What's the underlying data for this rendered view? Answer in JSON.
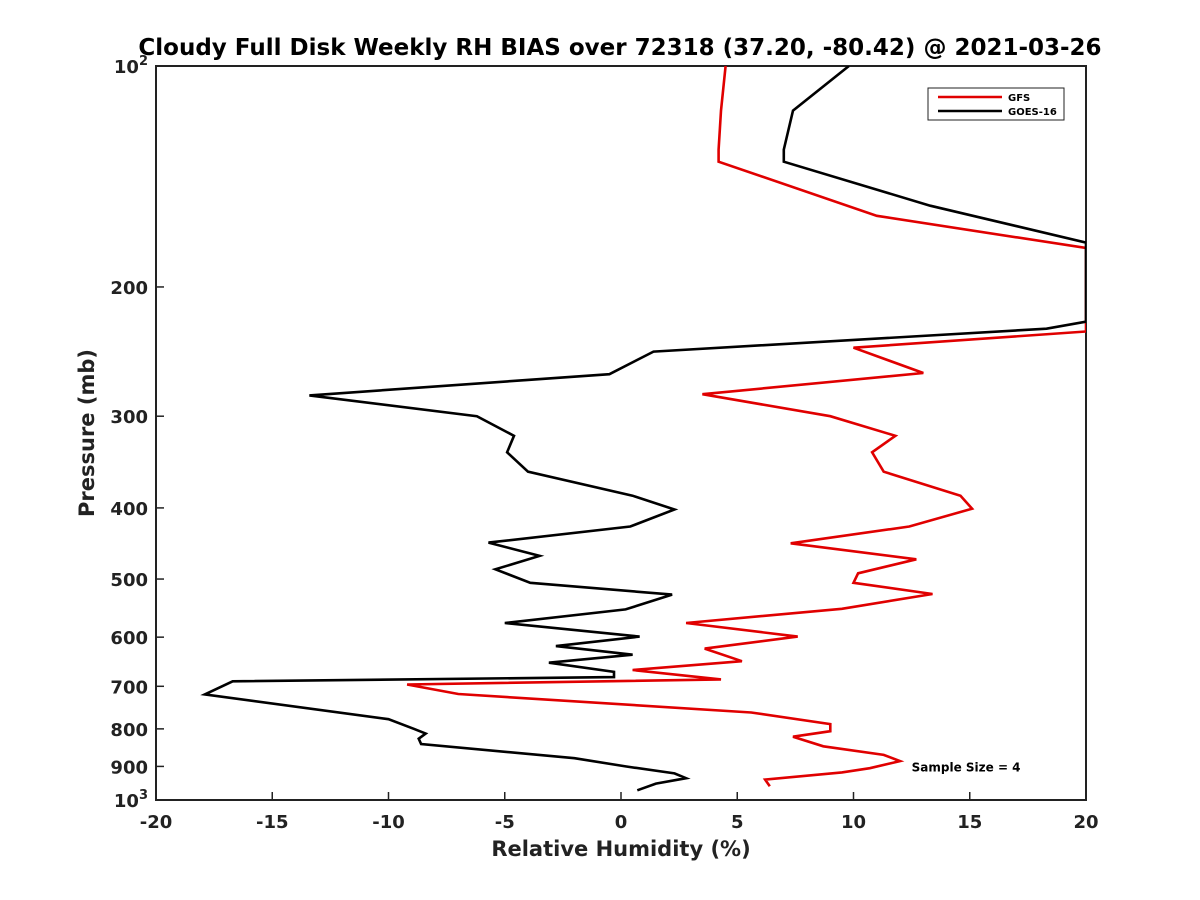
{
  "chart_data": {
    "type": "line",
    "orientation": "profile",
    "title": "Cloudy Full Disk Weekly RH BIAS over 72318 (37.20, -80.42) @ 2021-03-26",
    "xlabel": "Relative Humidity (%)",
    "ylabel": "Pressure (mb)",
    "xlim": [
      -20,
      20
    ],
    "ylim": [
      100,
      1000
    ],
    "yscale": "log",
    "y_inverted": true,
    "grid": false,
    "xticks": [
      {
        "value": -20,
        "label": "-20"
      },
      {
        "value": -15,
        "label": "-15"
      },
      {
        "value": -10,
        "label": "-10"
      },
      {
        "value": -5,
        "label": "-5"
      },
      {
        "value": 0,
        "label": "0"
      },
      {
        "value": 5,
        "label": "5"
      },
      {
        "value": 10,
        "label": "10"
      },
      {
        "value": 15,
        "label": "15"
      },
      {
        "value": 20,
        "label": "20"
      }
    ],
    "yticks": [
      {
        "value": 100,
        "base": "10",
        "exp": "2"
      },
      {
        "value": 200,
        "base": "200",
        "exp": ""
      },
      {
        "value": 300,
        "base": "300",
        "exp": ""
      },
      {
        "value": 400,
        "base": "400",
        "exp": ""
      },
      {
        "value": 500,
        "base": "500",
        "exp": ""
      },
      {
        "value": 600,
        "base": "600",
        "exp": ""
      },
      {
        "value": 700,
        "base": "700",
        "exp": ""
      },
      {
        "value": 800,
        "base": "800",
        "exp": ""
      },
      {
        "value": 900,
        "base": "900",
        "exp": ""
      },
      {
        "value": 1000,
        "base": "10",
        "exp": "3"
      }
    ],
    "legend_position": "top-right",
    "series": [
      {
        "name": "GFS",
        "color": "#e00000",
        "points": [
          [
            4.5,
            100
          ],
          [
            4.3,
            115
          ],
          [
            4.2,
            130
          ],
          [
            4.2,
            135
          ],
          [
            11,
            160
          ],
          [
            20,
            177
          ],
          [
            20,
            230
          ],
          [
            10,
            242
          ],
          [
            13,
            262
          ],
          [
            3.5,
            280
          ],
          [
            9,
            300
          ],
          [
            11.8,
            319
          ],
          [
            10.8,
            336
          ],
          [
            11.3,
            357
          ],
          [
            14.6,
            385
          ],
          [
            15.1,
            401
          ],
          [
            12.4,
            424
          ],
          [
            7.3,
            447
          ],
          [
            12.7,
            470
          ],
          [
            10.2,
            491
          ],
          [
            10,
            506
          ],
          [
            13.4,
            524
          ],
          [
            9.5,
            549
          ],
          [
            2.8,
            574
          ],
          [
            7.6,
            599
          ],
          [
            3.6,
            622
          ],
          [
            5.2,
            647
          ],
          [
            0.5,
            665
          ],
          [
            4.3,
            685
          ],
          [
            -9.2,
            696
          ],
          [
            -7,
            717
          ],
          [
            5.6,
            760
          ],
          [
            9,
            788
          ],
          [
            9,
            806
          ],
          [
            7.4,
            820
          ],
          [
            8.7,
            845
          ],
          [
            11.3,
            868
          ],
          [
            12,
            885
          ],
          [
            10.7,
            905
          ],
          [
            9.5,
            917
          ],
          [
            6.2,
            938
          ],
          [
            6.4,
            958
          ]
        ]
      },
      {
        "name": "GOES-16",
        "color": "#000000",
        "points": [
          [
            9.8,
            100
          ],
          [
            7.4,
            115
          ],
          [
            7,
            130
          ],
          [
            7,
            135
          ],
          [
            13.3,
            155
          ],
          [
            20,
            174
          ],
          [
            20,
            223
          ],
          [
            18.3,
            228
          ],
          [
            1.4,
            245
          ],
          [
            -0.5,
            263
          ],
          [
            -13.4,
            281
          ],
          [
            -6.2,
            300
          ],
          [
            -4.6,
            319
          ],
          [
            -4.9,
            336
          ],
          [
            -4,
            357
          ],
          [
            0.5,
            385
          ],
          [
            2.3,
            402
          ],
          [
            0.4,
            424
          ],
          [
            -5.7,
            446
          ],
          [
            -3.5,
            465
          ],
          [
            -5.4,
            485
          ],
          [
            -3.9,
            506
          ],
          [
            2.2,
            525
          ],
          [
            0.2,
            550
          ],
          [
            -5,
            574
          ],
          [
            0.8,
            599
          ],
          [
            -2.8,
            617
          ],
          [
            0.5,
            634
          ],
          [
            -3.1,
            650
          ],
          [
            -0.3,
            669
          ],
          [
            -0.3,
            680
          ],
          [
            -16.7,
            689
          ],
          [
            -17.9,
            718
          ],
          [
            -10,
            776
          ],
          [
            -8.9,
            800
          ],
          [
            -8.4,
            812
          ],
          [
            -8.7,
            825
          ],
          [
            -8.6,
            839
          ],
          [
            -2,
            877
          ],
          [
            0.2,
            900
          ],
          [
            2.3,
            920
          ],
          [
            2.8,
            934
          ],
          [
            1.5,
            950
          ],
          [
            0.7,
            970
          ]
        ]
      }
    ],
    "annotations": [
      {
        "text": "Sample Size = 4",
        "x": 12.5,
        "y": 900
      }
    ]
  }
}
